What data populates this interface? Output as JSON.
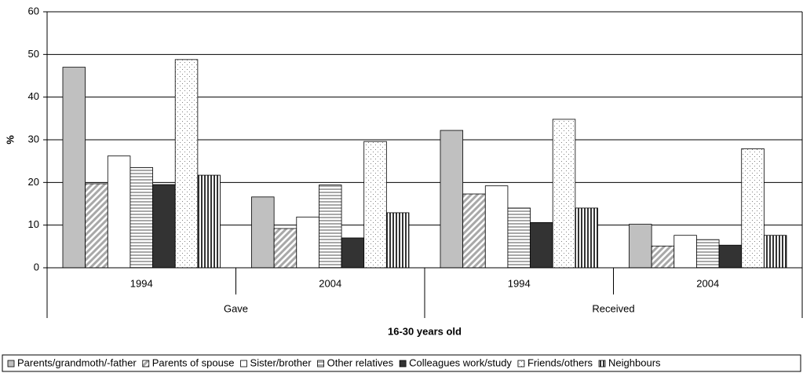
{
  "chart_data": {
    "type": "bar",
    "y_label": "%",
    "x_label": "16-30 years old",
    "categories": [
      "1994",
      "2004",
      "1994",
      "2004"
    ],
    "groups": [
      "Gave",
      "Received"
    ],
    "ylim": [
      0,
      60
    ],
    "yticks": [
      0,
      10,
      20,
      30,
      40,
      50,
      60
    ],
    "grid": true,
    "legend": "bottom",
    "series": [
      {
        "name": "Parents/grandmoth/-father",
        "color": "#c0c0c0",
        "pattern": "solid",
        "values": [
          47,
          16.6,
          32.2,
          10.2
        ]
      },
      {
        "name": "Parents of spouse",
        "color": "#a8a8a8",
        "pattern": "diagonal",
        "values": [
          19.7,
          9.2,
          17.3,
          5.1
        ]
      },
      {
        "name": "Sister/brother",
        "color": "#ffffff",
        "pattern": "solid",
        "values": [
          26.2,
          11.9,
          19.2,
          7.6
        ]
      },
      {
        "name": "Other relatives",
        "color": "#a8a8a8",
        "pattern": "horizontal",
        "values": [
          23.5,
          19.4,
          14,
          6.6
        ]
      },
      {
        "name": "Colleagues work/study",
        "color": "#333333",
        "pattern": "solid",
        "values": [
          19.5,
          7,
          10.6,
          5.3
        ]
      },
      {
        "name": "Friends/others",
        "color": "#808080",
        "pattern": "dots",
        "values": [
          48.8,
          29.6,
          34.8,
          27.9
        ]
      },
      {
        "name": "Neighbours",
        "color": "#333333",
        "pattern": "vertical",
        "values": [
          21.7,
          12.9,
          14,
          7.6
        ]
      }
    ]
  }
}
